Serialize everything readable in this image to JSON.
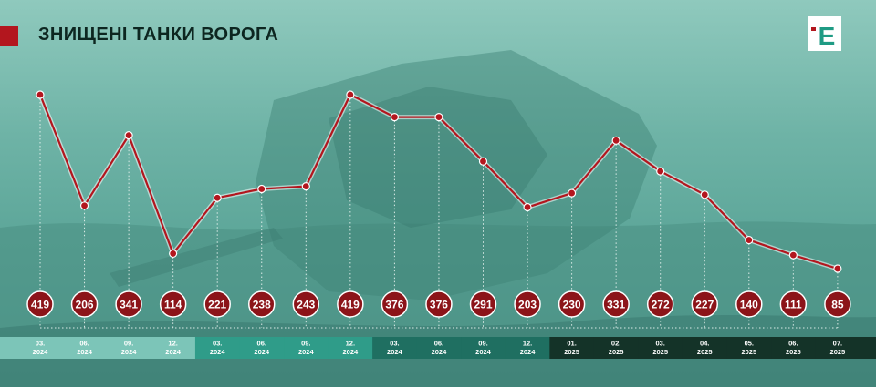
{
  "title": "ЗНИЩЕНІ ТАНКИ ВОРОГА",
  "logo": {
    "icon": "epravda-logo-icon",
    "letter": "Е"
  },
  "colors": {
    "accent": "#b3161e",
    "line": "#b3161e",
    "marker": "#8c1419",
    "year_2024_q1": "#7cc5b8",
    "year_2024_q2": "#2f9c89",
    "year_2024_q3": "#1f6f61",
    "year_2025": "#143328"
  },
  "chart_data": {
    "type": "line",
    "title": "ЗНИЩЕНІ ТАНКИ ВОРОГА",
    "xlabel": "",
    "ylabel": "",
    "grid": false,
    "legend": "none",
    "categories": [
      "03. 2024",
      "06. 2024",
      "09. 2024",
      "12. 2024",
      "03. 2024",
      "06. 2024",
      "09. 2024",
      "12. 2024",
      "03. 2024",
      "06. 2024",
      "09. 2024",
      "12. 2024",
      "01. 2025",
      "02. 2025",
      "03. 2025",
      "04. 2025",
      "05. 2025",
      "06. 2025",
      "07. 2025"
    ],
    "date_lines": [
      [
        "03.",
        "2024"
      ],
      [
        "06.",
        "2024"
      ],
      [
        "09.",
        "2024"
      ],
      [
        "12.",
        "2024"
      ],
      [
        "03.",
        "2024"
      ],
      [
        "06.",
        "2024"
      ],
      [
        "09.",
        "2024"
      ],
      [
        "12.",
        "2024"
      ],
      [
        "03.",
        "2024"
      ],
      [
        "06.",
        "2024"
      ],
      [
        "09.",
        "2024"
      ],
      [
        "12.",
        "2024"
      ],
      [
        "01.",
        "2025"
      ],
      [
        "02.",
        "2025"
      ],
      [
        "03.",
        "2025"
      ],
      [
        "04.",
        "2025"
      ],
      [
        "05.",
        "2025"
      ],
      [
        "06.",
        "2025"
      ],
      [
        "07.",
        "2025"
      ]
    ],
    "values": [
      419,
      206,
      341,
      114,
      221,
      238,
      243,
      419,
      376,
      376,
      291,
      203,
      230,
      331,
      272,
      227,
      140,
      111,
      85
    ]
  }
}
